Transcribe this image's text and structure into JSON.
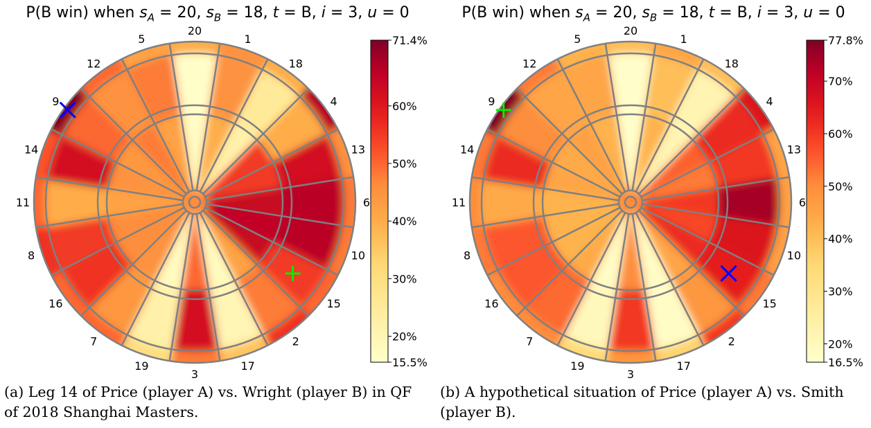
{
  "panels": [
    {
      "title": {
        "prefix": "P(B win) when ",
        "parts": [
          {
            "v": "s",
            "s": "A",
            "r": " = 20, "
          },
          {
            "v": "s",
            "s": "B",
            "r": " = 18, "
          },
          {
            "v": "t",
            "s": "",
            "r": " = B, "
          },
          {
            "v": "i",
            "s": "",
            "r": " = 3, "
          },
          {
            "v": "u",
            "s": "",
            "r": " = 0"
          }
        ]
      },
      "caption": "(a) Leg 14 of Price (player A) vs. Wright (player B) in QF of 2018 Shanghai Masters.",
      "markers": [
        {
          "type": "x",
          "color": "#0000ff",
          "segment": "9",
          "ring": "double"
        },
        {
          "type": "plus",
          "color": "#00ee00",
          "segment": "15",
          "ring": "outer-single-inner"
        }
      ],
      "colorbar": {
        "min_label": "15.5%",
        "max_label": "71.4%",
        "min": 15.5,
        "max": 71.4,
        "ticks": [
          {
            "v": 20,
            "label": "20%"
          },
          {
            "v": 30,
            "label": "30%"
          },
          {
            "v": 40,
            "label": "40%"
          },
          {
            "v": 50,
            "label": "50%"
          },
          {
            "v": 60,
            "label": "60%"
          }
        ]
      }
    },
    {
      "title": {
        "prefix": "P(B win) when ",
        "parts": [
          {
            "v": "s",
            "s": "A",
            "r": " = 20, "
          },
          {
            "v": "s",
            "s": "B",
            "r": " = 18, "
          },
          {
            "v": "t",
            "s": "",
            "r": " = B, "
          },
          {
            "v": "i",
            "s": "",
            "r": " = 3, "
          },
          {
            "v": "u",
            "s": "",
            "r": " = 0"
          }
        ]
      },
      "caption": "(b) A hypothetical situation of Price (player A) vs. Smith (player B).",
      "markers": [
        {
          "type": "plus",
          "color": "#00ee00",
          "segment": "9",
          "ring": "double"
        },
        {
          "type": "x",
          "color": "#0000ff",
          "segment": "15",
          "ring": "outer-single-inner"
        }
      ],
      "colorbar": {
        "min_label": "16.5%",
        "max_label": "77.8%",
        "min": 16.5,
        "max": 77.8,
        "ticks": [
          {
            "v": 20,
            "label": "20%"
          },
          {
            "v": 30,
            "label": "30%"
          },
          {
            "v": 40,
            "label": "40%"
          },
          {
            "v": 50,
            "label": "50%"
          },
          {
            "v": 60,
            "label": "60%"
          },
          {
            "v": 70,
            "label": "70%"
          }
        ]
      }
    }
  ],
  "board_numbers": [
    "20",
    "1",
    "18",
    "4",
    "13",
    "6",
    "10",
    "15",
    "2",
    "17",
    "3",
    "19",
    "7",
    "16",
    "8",
    "11",
    "14",
    "9",
    "12",
    "5"
  ],
  "colors": {
    "low": "#ffffcc",
    "mid": "#fd8d3c",
    "high": "#800026",
    "wire": "#808080"
  },
  "chart_data": [
    {
      "type": "heatmap",
      "title": "P(B win) when s_A = 20, s_B = 18, t = B, i = 3, u = 0",
      "layout": "polar dartboard",
      "segments": [
        "20",
        "1",
        "18",
        "4",
        "13",
        "6",
        "10",
        "15",
        "2",
        "17",
        "3",
        "19",
        "7",
        "16",
        "8",
        "11",
        "14",
        "9",
        "12",
        "5"
      ],
      "value_range": [
        15.5,
        71.4
      ],
      "values_outer_single": [
        16,
        45,
        25,
        40,
        62,
        66,
        66,
        55,
        48,
        20,
        62,
        22,
        44,
        56,
        55,
        40,
        62,
        50,
        45,
        48
      ],
      "values_inner_single": [
        17,
        40,
        22,
        55,
        55,
        64,
        65,
        64,
        42,
        18,
        50,
        18,
        45,
        46,
        46,
        42,
        45,
        44,
        48,
        42
      ],
      "values_double": [
        40,
        45,
        40,
        66,
        45,
        48,
        48,
        50,
        56,
        36,
        48,
        30,
        50,
        50,
        56,
        50,
        52,
        71,
        50,
        42
      ]
    },
    {
      "type": "heatmap",
      "title": "P(B win) when s_A = 20, s_B = 18, t = B, i = 3, u = 0",
      "layout": "polar dartboard",
      "segments": [
        "20",
        "1",
        "18",
        "4",
        "13",
        "6",
        "10",
        "15",
        "2",
        "17",
        "3",
        "19",
        "7",
        "16",
        "8",
        "11",
        "14",
        "9",
        "12",
        "5"
      ],
      "value_range": [
        16.5,
        77.8
      ],
      "values_outer_single": [
        17,
        40,
        22,
        62,
        60,
        74,
        66,
        64,
        48,
        18,
        60,
        20,
        54,
        56,
        56,
        44,
        62,
        50,
        45,
        45
      ],
      "values_inner_single": [
        17,
        42,
        22,
        55,
        52,
        60,
        58,
        62,
        45,
        18,
        50,
        18,
        44,
        42,
        42,
        42,
        45,
        44,
        46,
        42
      ],
      "values_double": [
        40,
        45,
        40,
        66,
        45,
        46,
        46,
        52,
        60,
        36,
        48,
        34,
        50,
        50,
        52,
        50,
        52,
        78,
        52,
        42
      ]
    }
  ]
}
